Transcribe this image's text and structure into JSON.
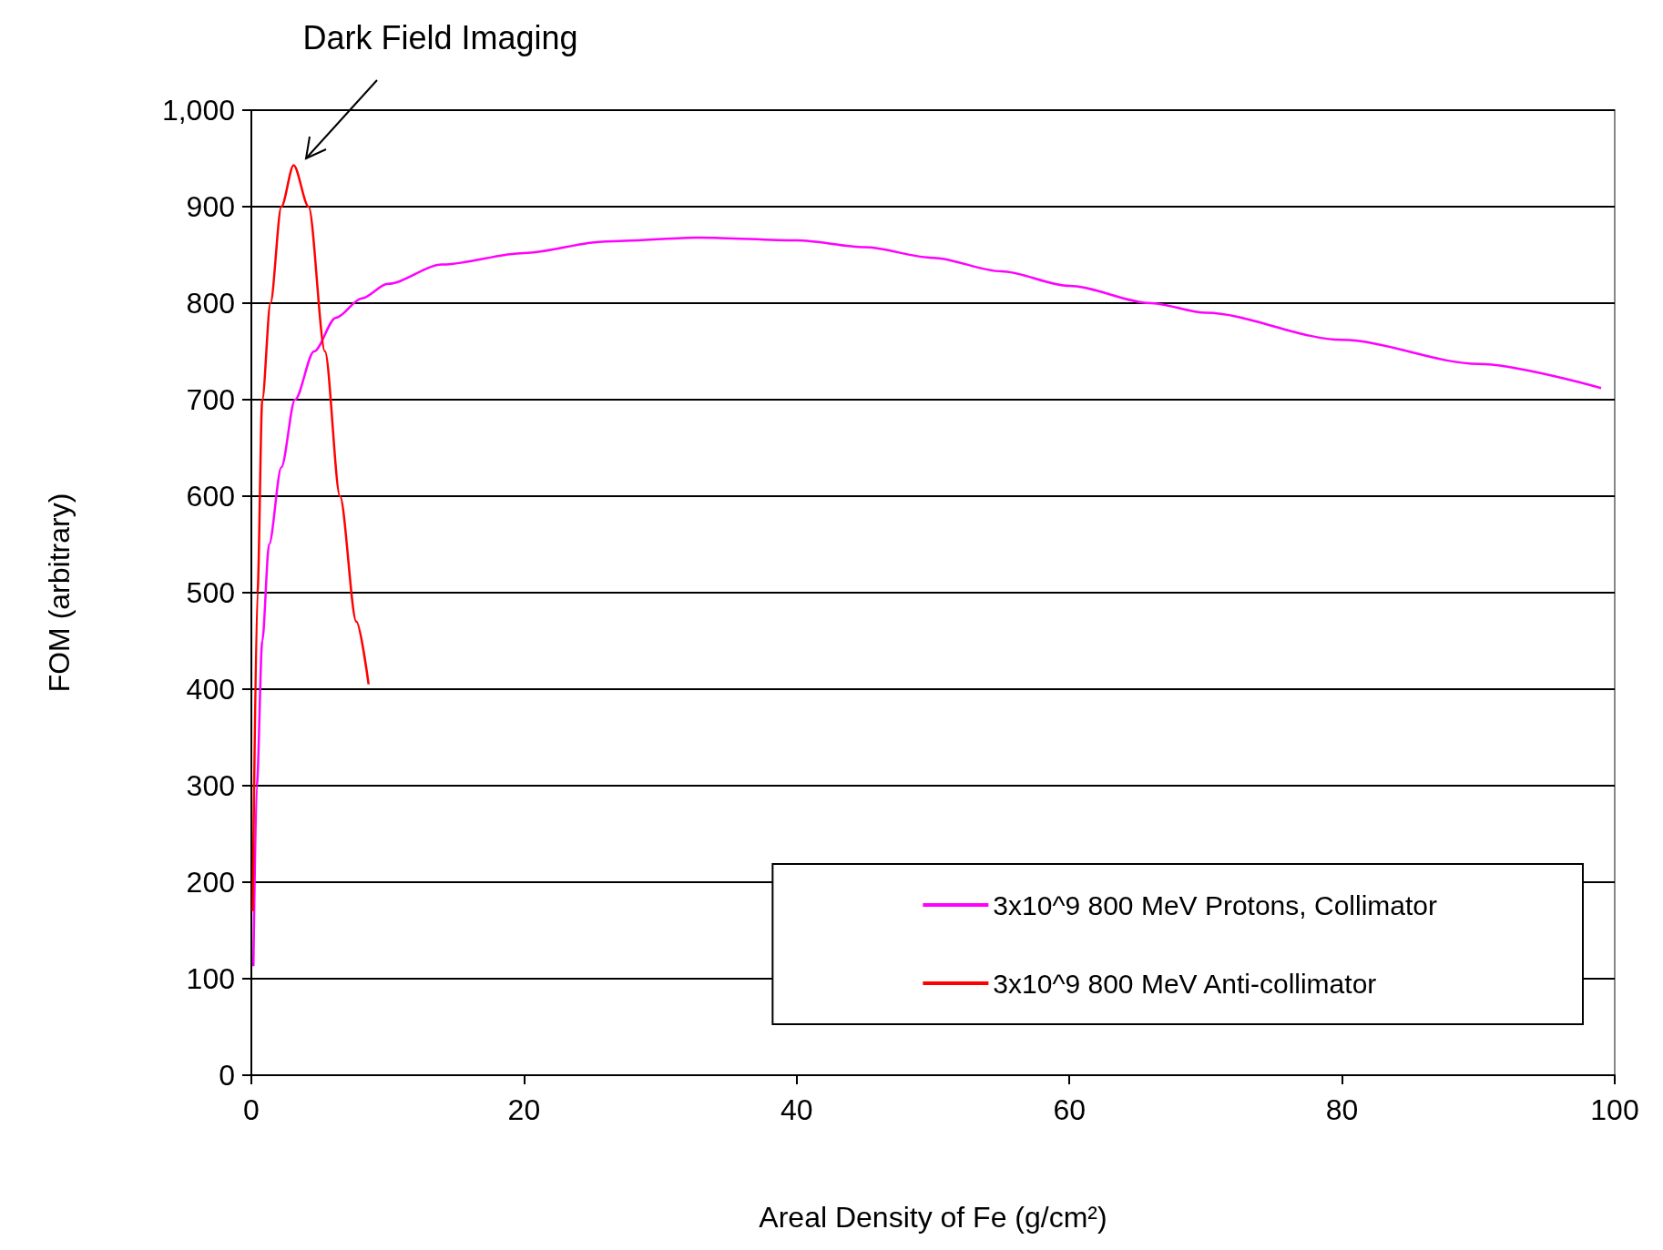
{
  "chart_data": {
    "type": "line",
    "xlabel": "Areal Density of Fe (g/cm²)",
    "ylabel": "FOM (arbitrary)",
    "xlim": [
      0,
      100
    ],
    "xticks": [
      0,
      20,
      40,
      60,
      80,
      100
    ],
    "ylim": [
      0,
      1000
    ],
    "yticks": [
      0,
      100,
      200,
      300,
      400,
      500,
      600,
      700,
      800,
      900,
      {
        "value": 1000,
        "label": "1,000"
      }
    ],
    "grid": "y",
    "legend": "bottom right",
    "marker": "none",
    "line_style": "solid",
    "annotations": [
      "Dark Field Imaging"
    ],
    "series": [
      {
        "name": "3x10^9 800 MeV Protons, Collimator",
        "color": "#ff00ff",
        "x": [
          0.15,
          0.4,
          0.8,
          1.3,
          2.2,
          3.2,
          4.6,
          6.2,
          8.1,
          10,
          14,
          20,
          26,
          33,
          40,
          45,
          50,
          55,
          60,
          66,
          70,
          80,
          90,
          99
        ],
        "values": [
          113,
          300,
          450,
          550,
          630,
          700,
          750,
          785,
          805,
          820,
          840,
          852,
          864,
          868,
          865,
          858,
          847,
          833,
          818,
          800,
          790,
          762,
          737,
          712
        ]
      },
      {
        "name": "3x10^9 800 MeV Anti-collimator",
        "color": "#ff0000",
        "x": [
          0.1,
          0.45,
          0.8,
          1.4,
          2.2,
          3.1,
          4.2,
          5.4,
          6.5,
          7.7,
          8.6
        ],
        "values": [
          170,
          500,
          700,
          800,
          900,
          943,
          900,
          750,
          600,
          470,
          405
        ]
      }
    ]
  }
}
